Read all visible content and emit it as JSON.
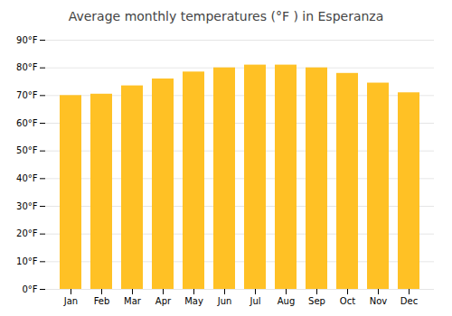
{
  "chart_data": {
    "type": "bar",
    "title": "Average monthly temperatures (°F ) in Esperanza",
    "categories": [
      "Jan",
      "Feb",
      "Mar",
      "Apr",
      "May",
      "Jun",
      "Jul",
      "Aug",
      "Sep",
      "Oct",
      "Nov",
      "Dec"
    ],
    "values": [
      70,
      70.5,
      73.5,
      76,
      78.5,
      80,
      81,
      81,
      80,
      78,
      74.5,
      71
    ],
    "color": "#FFC125",
    "ylim": [
      0,
      90
    ],
    "yticks": [
      {
        "value": 0,
        "label": "0°F"
      },
      {
        "value": 10,
        "label": "10°F"
      },
      {
        "value": 20,
        "label": "20°F"
      },
      {
        "value": 30,
        "label": "30°F"
      },
      {
        "value": 40,
        "label": "40°F"
      },
      {
        "value": 50,
        "label": "50°F"
      },
      {
        "value": 60,
        "label": "60°F"
      },
      {
        "value": 70,
        "label": "70°F"
      },
      {
        "value": 80,
        "label": "80°F"
      },
      {
        "value": 90,
        "label": "90°F"
      }
    ],
    "grid": true
  }
}
